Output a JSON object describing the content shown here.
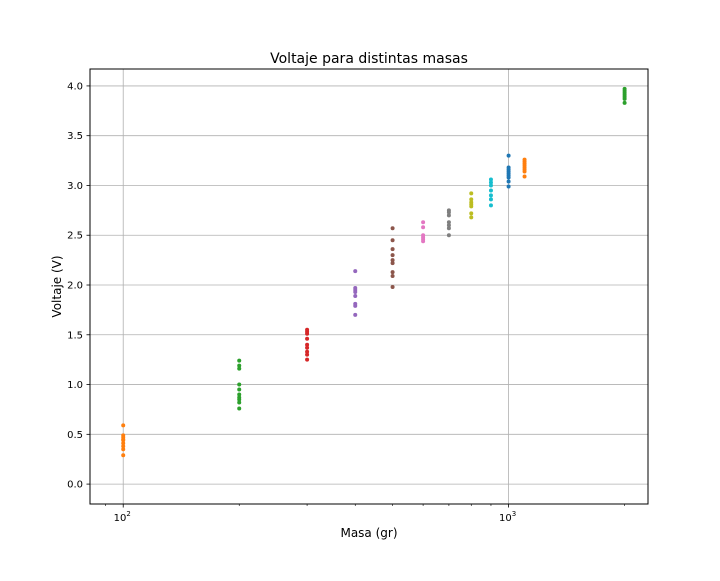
{
  "chart_data": {
    "type": "scatter",
    "title": "Voltaje para distintas masas",
    "xlabel": "Masa (gr)",
    "ylabel": "Voltaje (V)",
    "xscale": "log",
    "xlim": [
      82,
      2300
    ],
    "ylim": [
      -0.2,
      4.17
    ],
    "grid": true,
    "legend": "none",
    "x_ticks": [
      {
        "value": 100,
        "base": "10",
        "exp": "2"
      },
      {
        "value": 1000,
        "base": "10",
        "exp": "3"
      }
    ],
    "y_ticks": [
      {
        "value": 0.0,
        "label": "0.0"
      },
      {
        "value": 0.5,
        "label": "0.5"
      },
      {
        "value": 1.0,
        "label": "1.0"
      },
      {
        "value": 1.5,
        "label": "1.5"
      },
      {
        "value": 2.0,
        "label": "2.0"
      },
      {
        "value": 2.5,
        "label": "2.5"
      },
      {
        "value": 3.0,
        "label": "3.0"
      },
      {
        "value": 3.5,
        "label": "3.5"
      },
      {
        "value": 4.0,
        "label": "4.0"
      }
    ],
    "series": [
      {
        "color": "#ff7f0e",
        "x": 100,
        "y": [
          0.59,
          0.49,
          0.47,
          0.45,
          0.44,
          0.41,
          0.38,
          0.35,
          0.29
        ]
      },
      {
        "color": "#2ca02c",
        "x": 200,
        "y": [
          1.24,
          1.19,
          1.16,
          1.0,
          0.95,
          0.9,
          0.87,
          0.85,
          0.82,
          0.76
        ]
      },
      {
        "color": "#d62728",
        "x": 300,
        "y": [
          1.55,
          1.53,
          1.51,
          1.46,
          1.4,
          1.37,
          1.33,
          1.3,
          1.25
        ]
      },
      {
        "color": "#9467bd",
        "x": 400,
        "y": [
          2.14,
          1.97,
          1.95,
          1.93,
          1.89,
          1.81,
          1.79,
          1.7
        ]
      },
      {
        "color": "#8c564b",
        "x": 500,
        "y": [
          2.57,
          2.45,
          2.36,
          2.3,
          2.25,
          2.22,
          2.13,
          2.09,
          1.98
        ]
      },
      {
        "color": "#e377c2",
        "x": 600,
        "y": [
          2.63,
          2.58,
          2.5,
          2.48,
          2.46,
          2.44
        ]
      },
      {
        "color": "#7f7f7f",
        "x": 700,
        "y": [
          2.75,
          2.73,
          2.7,
          2.63,
          2.6,
          2.57,
          2.5
        ]
      },
      {
        "color": "#bcbd22",
        "x": 800,
        "y": [
          2.92,
          2.86,
          2.83,
          2.81,
          2.79,
          2.72,
          2.68
        ]
      },
      {
        "color": "#17becf",
        "x": 900,
        "y": [
          3.06,
          3.03,
          3.0,
          2.95,
          2.9,
          2.86,
          2.8
        ]
      },
      {
        "color": "#1f77b4",
        "x": 1000,
        "y": [
          3.3,
          3.18,
          3.16,
          3.14,
          3.12,
          3.1,
          3.08,
          3.04,
          2.99
        ]
      },
      {
        "color": "#ff7f0e",
        "x": 1100,
        "y": [
          3.26,
          3.24,
          3.22,
          3.2,
          3.18,
          3.16,
          3.14,
          3.09
        ]
      },
      {
        "color": "#2ca02c",
        "x": 2000,
        "y": [
          3.97,
          3.95,
          3.93,
          3.91,
          3.89,
          3.87,
          3.83
        ]
      }
    ]
  }
}
